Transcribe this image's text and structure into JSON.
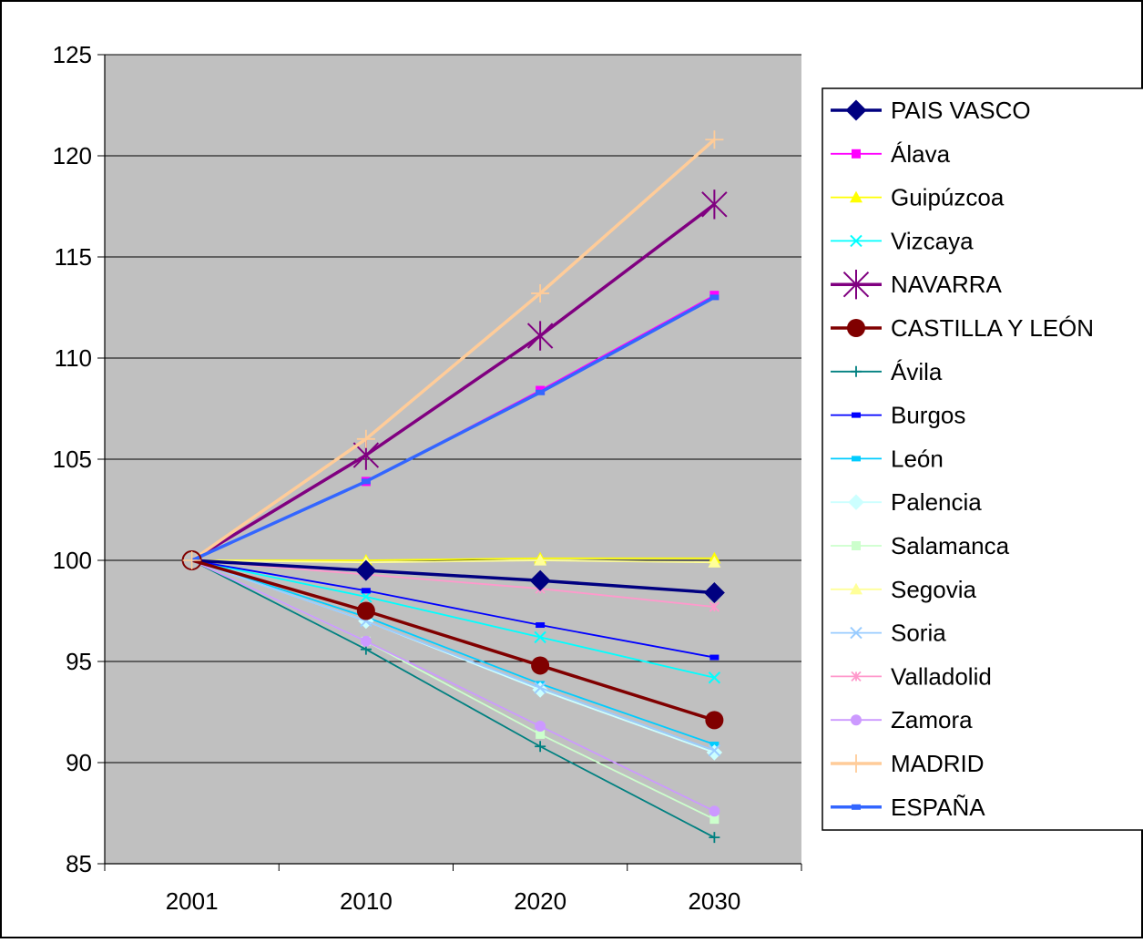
{
  "chart_data": {
    "type": "line",
    "title": "",
    "xlabel": "",
    "ylabel": "",
    "categories": [
      "2001",
      "2010",
      "2020",
      "2030"
    ],
    "ylim": [
      85,
      125
    ],
    "yticks": [
      85,
      90,
      95,
      100,
      105,
      110,
      115,
      120,
      125
    ],
    "grid": "horizontal",
    "plot_background": "#C0C0C0",
    "legend_position": "right",
    "series": [
      {
        "name": "PAIS VASCO",
        "values": [
          100,
          99.5,
          99.0,
          98.4
        ],
        "color": "#000080",
        "marker": "diamond",
        "bold": true
      },
      {
        "name": "Álava",
        "values": [
          100,
          103.9,
          108.4,
          113.1
        ],
        "color": "#FF00FF",
        "marker": "square",
        "bold": false
      },
      {
        "name": "Guipúzcoa",
        "values": [
          100,
          100.0,
          100.1,
          100.1
        ],
        "color": "#FFFF00",
        "marker": "triangle",
        "bold": false
      },
      {
        "name": "Vizcaya",
        "values": [
          100,
          98.2,
          96.2,
          94.2
        ],
        "color": "#00FFFF",
        "marker": "x",
        "bold": false
      },
      {
        "name": "NAVARRA",
        "values": [
          100,
          105.2,
          111.1,
          117.6
        ],
        "color": "#800080",
        "marker": "star",
        "bold": true
      },
      {
        "name": "CASTILLA Y LEÓN",
        "values": [
          100,
          97.5,
          94.8,
          92.1
        ],
        "color": "#800000",
        "marker": "circle",
        "bold": true
      },
      {
        "name": "Ávila",
        "values": [
          100,
          95.6,
          90.8,
          86.3
        ],
        "color": "#008080",
        "marker": "plus",
        "bold": false
      },
      {
        "name": "Burgos",
        "values": [
          100,
          98.5,
          96.8,
          95.2
        ],
        "color": "#0000FF",
        "marker": "dash",
        "bold": false
      },
      {
        "name": "León",
        "values": [
          100,
          97.2,
          93.9,
          90.9
        ],
        "color": "#00CCFF",
        "marker": "dash",
        "bold": false
      },
      {
        "name": "Palencia",
        "values": [
          100,
          97.0,
          93.6,
          90.5
        ],
        "color": "#CCFFFF",
        "marker": "diamond",
        "bold": false
      },
      {
        "name": "Salamanca",
        "values": [
          100,
          96.0,
          91.4,
          87.2
        ],
        "color": "#CCFFCC",
        "marker": "square",
        "bold": false
      },
      {
        "name": "Segovia",
        "values": [
          100,
          99.9,
          100.0,
          99.9
        ],
        "color": "#FFFF99",
        "marker": "triangle",
        "bold": false
      },
      {
        "name": "Soria",
        "values": [
          100,
          97.0,
          93.7,
          90.6
        ],
        "color": "#99CCFF",
        "marker": "x",
        "bold": false
      },
      {
        "name": "Valladolid",
        "values": [
          100,
          99.3,
          98.6,
          97.7
        ],
        "color": "#FF99CC",
        "marker": "asterisk",
        "bold": false
      },
      {
        "name": "Zamora",
        "values": [
          100,
          96.0,
          91.8,
          87.6
        ],
        "color": "#CC99FF",
        "marker": "circle",
        "bold": false
      },
      {
        "name": "MADRID",
        "values": [
          100,
          106.0,
          113.2,
          120.8
        ],
        "color": "#FFCC99",
        "marker": "plus",
        "bold": true
      },
      {
        "name": "ESPAÑA",
        "values": [
          100,
          103.9,
          108.3,
          113.0
        ],
        "color": "#3366FF",
        "marker": "dash",
        "bold": true
      }
    ]
  }
}
